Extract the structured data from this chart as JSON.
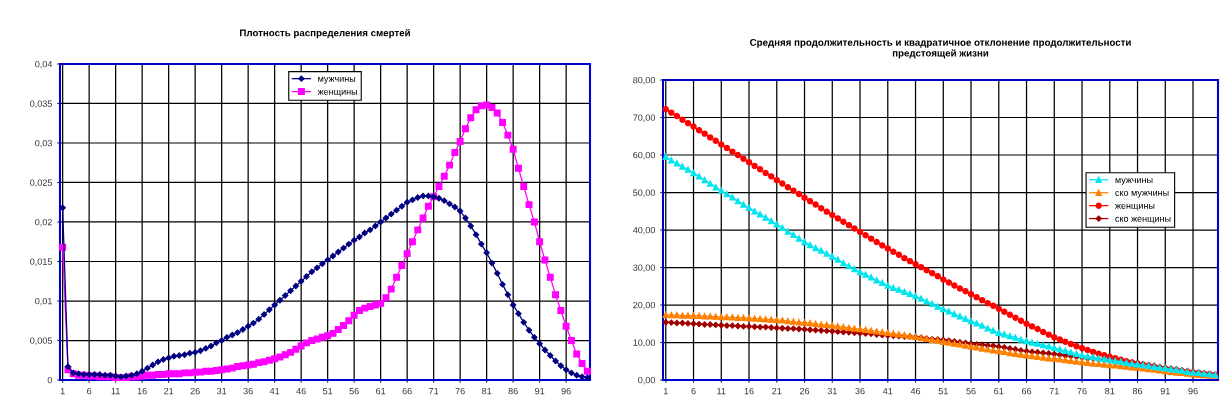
{
  "chart_data": [
    {
      "type": "line",
      "title": "Плотность распределения смертей",
      "categories": [
        "1",
        null,
        null,
        null,
        null,
        "6",
        null,
        null,
        null,
        null,
        "11",
        null,
        null,
        null,
        null,
        "16",
        null,
        null,
        null,
        null,
        "21",
        null,
        null,
        null,
        null,
        "26",
        null,
        null,
        null,
        null,
        "31",
        null,
        null,
        null,
        null,
        "36",
        null,
        null,
        null,
        null,
        "41",
        null,
        null,
        null,
        null,
        "46",
        null,
        null,
        null,
        null,
        "51",
        null,
        null,
        null,
        null,
        "56",
        null,
        null,
        null,
        null,
        "61",
        null,
        null,
        null,
        null,
        "66",
        null,
        null,
        null,
        null,
        "71",
        null,
        null,
        null,
        null,
        "76",
        null,
        null,
        null,
        null,
        "81",
        null,
        null,
        null,
        null,
        "86",
        null,
        null,
        null,
        null,
        "91",
        null,
        null,
        null,
        null,
        "96",
        null,
        null,
        null,
        null
      ],
      "series": [
        {
          "name": "мужчины",
          "color": "#000080",
          "marker": "diamond",
          "values": [
            0.0218,
            0.0017,
            0.0009,
            0.0008,
            0.0007,
            0.0007,
            0.0007,
            0.0007,
            0.0006,
            0.0006,
            0.0005,
            0.0004,
            0.0005,
            0.0006,
            0.0008,
            0.0011,
            0.0015,
            0.0019,
            0.0023,
            0.0026,
            0.0028,
            0.003,
            0.0031,
            0.0032,
            0.0034,
            0.0035,
            0.0037,
            0.004,
            0.0043,
            0.0047,
            0.005,
            0.0054,
            0.0057,
            0.006,
            0.0064,
            0.0068,
            0.0072,
            0.0077,
            0.0083,
            0.0089,
            0.0095,
            0.0101,
            0.0107,
            0.0113,
            0.0119,
            0.0125,
            0.0131,
            0.0137,
            0.0142,
            0.0147,
            0.0152,
            0.0157,
            0.0162,
            0.0167,
            0.0172,
            0.0177,
            0.0181,
            0.0186,
            0.019,
            0.0195,
            0.02,
            0.0205,
            0.021,
            0.0215,
            0.022,
            0.0225,
            0.0228,
            0.0231,
            0.0233,
            0.0233,
            0.0232,
            0.023,
            0.0227,
            0.0223,
            0.0219,
            0.0214,
            0.0205,
            0.0195,
            0.0184,
            0.0172,
            0.0161,
            0.0148,
            0.0135,
            0.0121,
            0.0108,
            0.0095,
            0.0084,
            0.0073,
            0.0063,
            0.0054,
            0.0046,
            0.0038,
            0.0031,
            0.0024,
            0.0018,
            0.0013,
            0.0009,
            0.0006,
            0.0004,
            0.0003
          ]
        },
        {
          "name": "женщины",
          "color": "#ff00ff",
          "marker": "square",
          "values": [
            0.0168,
            0.0013,
            0.0008,
            0.0006,
            0.0006,
            0.0005,
            0.0005,
            0.0004,
            0.0004,
            0.0004,
            0.0003,
            0.0003,
            0.0003,
            0.0004,
            0.0004,
            0.0005,
            0.0006,
            0.0006,
            0.0007,
            0.0007,
            0.0008,
            0.0008,
            0.0008,
            0.0009,
            0.0009,
            0.001,
            0.001,
            0.0011,
            0.0011,
            0.0012,
            0.0013,
            0.0014,
            0.0015,
            0.0017,
            0.0018,
            0.0019,
            0.002,
            0.0022,
            0.0023,
            0.0025,
            0.0027,
            0.0029,
            0.0032,
            0.0035,
            0.0039,
            0.0043,
            0.0047,
            0.005,
            0.0052,
            0.0054,
            0.0056,
            0.0059,
            0.0064,
            0.0069,
            0.0075,
            0.0082,
            0.0088,
            0.0091,
            0.0093,
            0.0095,
            0.0097,
            0.0104,
            0.0115,
            0.013,
            0.0145,
            0.016,
            0.0175,
            0.019,
            0.0205,
            0.022,
            0.0232,
            0.0245,
            0.0258,
            0.0272,
            0.0288,
            0.0302,
            0.0318,
            0.0332,
            0.0342,
            0.0347,
            0.0348,
            0.0345,
            0.0338,
            0.0326,
            0.031,
            0.0292,
            0.0268,
            0.0245,
            0.0222,
            0.02,
            0.0175,
            0.0152,
            0.013,
            0.0108,
            0.0088,
            0.0068,
            0.005,
            0.0033,
            0.0021,
            0.0011
          ]
        }
      ],
      "ylim": [
        0,
        0.04
      ],
      "yticks": [
        0,
        {
          "value": 0.005,
          "label": "0,005"
        },
        {
          "value": 0.01,
          "label": "0,01"
        },
        {
          "value": 0.015,
          "label": "0,015"
        },
        {
          "value": 0.02,
          "label": "0,02"
        },
        {
          "value": 0.025,
          "label": "0,025"
        },
        {
          "value": 0.03,
          "label": "0,03"
        },
        {
          "value": 0.035,
          "label": "0,035"
        },
        {
          "value": 0.04,
          "label": "0,04"
        }
      ],
      "grid": true,
      "legend": "top"
    },
    {
      "type": "line",
      "title": "Средняя продолжительность и квадратичное отклонение продолжительности предстоящей жизни",
      "categories": [
        "1",
        null,
        null,
        null,
        null,
        "6",
        null,
        null,
        null,
        null,
        "11",
        null,
        null,
        null,
        null,
        "16",
        null,
        null,
        null,
        null,
        "21",
        null,
        null,
        null,
        null,
        "26",
        null,
        null,
        null,
        null,
        "31",
        null,
        null,
        null,
        null,
        "36",
        null,
        null,
        null,
        null,
        "41",
        null,
        null,
        null,
        null,
        "46",
        null,
        null,
        null,
        null,
        "51",
        null,
        null,
        null,
        null,
        "56",
        null,
        null,
        null,
        null,
        "61",
        null,
        null,
        null,
        null,
        "66",
        null,
        null,
        null,
        null,
        "71",
        null,
        null,
        null,
        null,
        "76",
        null,
        null,
        null,
        null,
        "81",
        null,
        null,
        null,
        null,
        "86",
        null,
        null,
        null,
        null,
        "91",
        null,
        null,
        null,
        null,
        "96",
        null,
        null,
        null,
        null
      ],
      "series": [
        {
          "name": "мужчины",
          "color": "#00e5ee",
          "marker": "triangle",
          "values": [
            59.5,
            58.6,
            57.8,
            56.9,
            56.1,
            55.2,
            54.3,
            53.3,
            52.4,
            51.4,
            50.5,
            49.6,
            48.7,
            47.7,
            46.8,
            45.9,
            45.0,
            44.2,
            43.3,
            42.4,
            41.5,
            40.6,
            39.6,
            38.7,
            37.7,
            36.8,
            36.0,
            35.2,
            34.5,
            33.7,
            32.9,
            32.1,
            31.2,
            30.4,
            29.6,
            28.8,
            28.1,
            27.4,
            26.6,
            25.9,
            25.2,
            24.6,
            24.1,
            23.5,
            23.0,
            22.4,
            21.7,
            21.0,
            20.3,
            19.6,
            18.9,
            18.3,
            17.6,
            17.0,
            16.3,
            15.7,
            15.1,
            14.5,
            13.8,
            13.2,
            12.6,
            12.2,
            11.7,
            11.3,
            10.8,
            10.4,
            10.0,
            9.7,
            9.3,
            9.0,
            8.6,
            8.2,
            7.8,
            7.4,
            7.0,
            6.6,
            6.3,
            6.1,
            5.8,
            5.6,
            5.3,
            5.1,
            4.9,
            4.6,
            4.4,
            4.2,
            4.0,
            3.8,
            3.5,
            3.3,
            3.1,
            2.9,
            2.7,
            2.5,
            2.2,
            2.0,
            1.9,
            1.7,
            1.6,
            1.4
          ]
        },
        {
          "name": "ско мужчины",
          "color": "#ff8000",
          "marker": "triangle",
          "values": [
            17.4,
            17.3,
            17.3,
            17.2,
            17.2,
            17.1,
            17.1,
            17.0,
            17.0,
            16.9,
            16.8,
            16.8,
            16.7,
            16.6,
            16.6,
            16.5,
            16.4,
            16.3,
            16.2,
            16.1,
            16.0,
            15.9,
            15.7,
            15.6,
            15.4,
            15.3,
            15.2,
            15.0,
            14.8,
            14.7,
            14.5,
            14.3,
            14.1,
            13.9,
            13.7,
            13.6,
            13.4,
            13.2,
            13.0,
            12.8,
            12.6,
            12.4,
            12.2,
            12.0,
            11.7,
            11.5,
            11.2,
            11.0,
            10.7,
            10.5,
            10.2,
            10.0,
            9.7,
            9.5,
            9.2,
            9.0,
            8.7,
            8.4,
            8.2,
            7.9,
            7.7,
            7.5,
            7.2,
            7.0,
            6.8,
            6.6,
            6.4,
            6.2,
            6.0,
            5.8,
            5.7,
            5.5,
            5.3,
            5.1,
            4.9,
            4.8,
            4.6,
            4.4,
            4.3,
            4.1,
            4.0,
            3.9,
            3.7,
            3.6,
            3.4,
            3.3,
            3.1,
            2.9,
            2.8,
            2.6,
            2.4,
            2.2,
            2.0,
            1.9,
            1.7,
            1.5,
            1.4,
            1.3,
            1.2,
            1.2
          ]
        },
        {
          "name": "женщины",
          "color": "#ff0000",
          "marker": "circle",
          "values": [
            72.2,
            71.3,
            70.4,
            69.4,
            68.5,
            67.6,
            66.6,
            65.7,
            64.7,
            63.8,
            62.8,
            61.9,
            60.9,
            60.0,
            59.0,
            58.1,
            57.1,
            56.2,
            55.2,
            54.3,
            53.3,
            52.4,
            51.4,
            50.5,
            49.6,
            48.6,
            47.7,
            46.8,
            45.8,
            44.9,
            44.0,
            43.1,
            42.2,
            41.3,
            40.4,
            39.5,
            38.6,
            37.7,
            36.8,
            35.9,
            35.1,
            34.2,
            33.4,
            32.5,
            31.7,
            30.9,
            30.1,
            29.3,
            28.5,
            27.7,
            26.8,
            26.0,
            25.2,
            24.4,
            23.7,
            22.9,
            22.1,
            21.3,
            20.5,
            19.8,
            19.0,
            18.2,
            17.4,
            16.6,
            15.8,
            15.0,
            14.3,
            13.6,
            12.8,
            12.1,
            11.4,
            10.8,
            10.2,
            9.6,
            9.0,
            8.5,
            8.0,
            7.5,
            7.0,
            6.6,
            6.2,
            5.8,
            5.4,
            5.0,
            4.7,
            4.4,
            4.1,
            3.8,
            3.5,
            3.2,
            3.0,
            2.8,
            2.6,
            2.4,
            2.2,
            2.0,
            1.9,
            1.7,
            1.6,
            1.4
          ]
        },
        {
          "name": "ско женщины",
          "color": "#a00000",
          "marker": "diamond",
          "values": [
            15.4,
            15.3,
            15.2,
            15.2,
            15.1,
            15.0,
            14.9,
            14.8,
            14.8,
            14.7,
            14.6,
            14.5,
            14.5,
            14.4,
            14.3,
            14.3,
            14.2,
            14.1,
            14.1,
            14.0,
            13.9,
            13.8,
            13.7,
            13.7,
            13.6,
            13.5,
            13.4,
            13.3,
            13.2,
            13.1,
            13.0,
            12.9,
            12.8,
            12.7,
            12.6,
            12.5,
            12.4,
            12.3,
            12.1,
            12.0,
            11.9,
            11.8,
            11.7,
            11.6,
            11.6,
            11.5,
            11.3,
            11.1,
            10.9,
            10.8,
            10.7,
            10.5,
            10.3,
            10.1,
            9.9,
            9.7,
            9.5,
            9.4,
            9.2,
            9.1,
            8.9,
            8.7,
            8.4,
            8.2,
            7.9,
            7.7,
            7.5,
            7.4,
            7.2,
            7.1,
            6.9,
            6.7,
            6.5,
            6.4,
            6.2,
            6.0,
            5.8,
            5.7,
            5.5,
            5.4,
            5.2,
            5.0,
            4.9,
            4.7,
            4.6,
            4.4,
            4.2,
            4.0,
            3.8,
            3.5,
            3.3,
            3.1,
            2.9,
            2.6,
            2.4,
            2.2,
            2.0,
            1.8,
            null,
            null
          ]
        }
      ],
      "ylim": [
        0,
        80
      ],
      "yticks": [
        {
          "value": 0,
          "label": "0,00"
        },
        {
          "value": 10,
          "label": "10,00"
        },
        {
          "value": 20,
          "label": "20,00"
        },
        {
          "value": 30,
          "label": "30,00"
        },
        {
          "value": 40,
          "label": "40,00"
        },
        {
          "value": 50,
          "label": "50,00"
        },
        {
          "value": 60,
          "label": "60,00"
        },
        {
          "value": 70,
          "label": "70,00"
        },
        {
          "value": 80,
          "label": "80,00"
        }
      ],
      "grid": true,
      "legend": "right"
    }
  ]
}
